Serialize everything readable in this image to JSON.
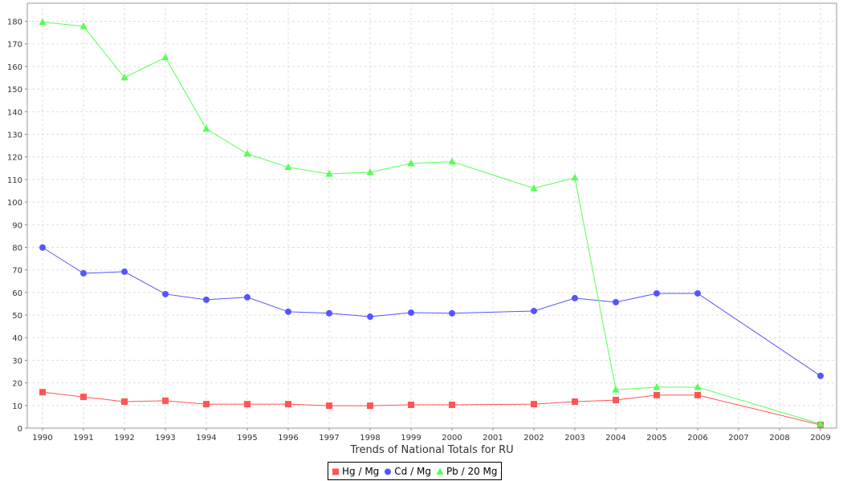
{
  "chart_data": {
    "type": "line",
    "title": "",
    "xlabel": "Trends of National Totals for RU",
    "ylabel": "",
    "ylim": [
      0,
      188
    ],
    "yticks": [
      0,
      10,
      20,
      30,
      40,
      50,
      60,
      70,
      80,
      90,
      100,
      110,
      120,
      130,
      140,
      150,
      160,
      170,
      180
    ],
    "grid": true,
    "legend_placement": "bottom",
    "categories": [
      "1990",
      "1991",
      "1992",
      "1993",
      "1994",
      "1995",
      "1996",
      "1997",
      "1998",
      "1999",
      "2000",
      "2001",
      "2002",
      "2003",
      "2004",
      "2005",
      "2006",
      "2007",
      "2008",
      "2009"
    ],
    "series": [
      {
        "name": "Hg / Mg",
        "color": "#ff5555",
        "marker": "square",
        "values": [
          15.9,
          13.8,
          11.7,
          12.1,
          10.6,
          10.6,
          10.6,
          9.9,
          9.9,
          10.3,
          10.3,
          null,
          10.6,
          11.7,
          12.4,
          14.6,
          14.6,
          null,
          null,
          1.4
        ]
      },
      {
        "name": "Cd / Mg",
        "color": "#5555ff",
        "marker": "circle",
        "values": [
          79.9,
          68.5,
          69.2,
          59.3,
          56.8,
          57.9,
          51.5,
          50.8,
          49.3,
          51.1,
          50.8,
          null,
          51.8,
          57.5,
          55.7,
          59.6,
          59.6,
          null,
          null,
          23.1
        ]
      },
      {
        "name": "Pb / 20 Mg",
        "color": "#55ff55",
        "marker": "triangle",
        "values": [
          179.6,
          177.8,
          155.1,
          164.0,
          132.4,
          121.4,
          115.4,
          112.5,
          113.2,
          117.1,
          117.9,
          null,
          106.1,
          110.8,
          17.0,
          18.1,
          18.1,
          null,
          null,
          1.8
        ]
      }
    ]
  }
}
